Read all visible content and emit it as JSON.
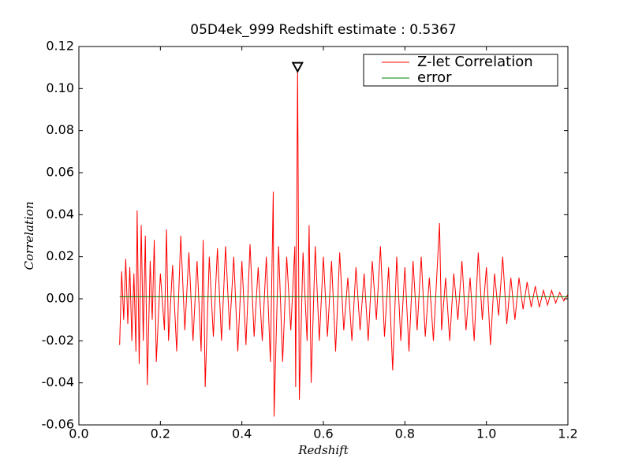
{
  "chart_data": {
    "type": "line",
    "title": "05D4ek_999 Redshift estimate : 0.5367",
    "x_label": "Redshift",
    "y_label": "Correlation",
    "xlim": [
      0,
      1.2
    ],
    "ylim": [
      -0.06,
      0.12
    ],
    "xticks": [
      {
        "value": 0,
        "label": "0.0"
      },
      0.2,
      0.4,
      0.6,
      0.8,
      {
        "value": 1,
        "label": "1.0"
      },
      1.2
    ],
    "yticks": [
      -0.06,
      -0.04,
      -0.02,
      {
        "value": 0,
        "label": "0.00"
      },
      0.02,
      0.04,
      0.06,
      0.08,
      {
        "value": 0.1,
        "label": "0.10"
      },
      0.12
    ],
    "grid": false,
    "legend": "upper right",
    "peak": {
      "x": 0.5367,
      "y": 0.11
    },
    "series": [
      {
        "name": "Z-let Correlation",
        "color": "#ff0000",
        "x": [
          0.1,
          0.105,
          0.11,
          0.115,
          0.12,
          0.125,
          0.13,
          0.135,
          0.14,
          0.143,
          0.148,
          0.153,
          0.158,
          0.163,
          0.168,
          0.175,
          0.18,
          0.185,
          0.19,
          0.2,
          0.21,
          0.215,
          0.22,
          0.23,
          0.24,
          0.25,
          0.26,
          0.27,
          0.28,
          0.29,
          0.3,
          0.305,
          0.31,
          0.32,
          0.33,
          0.34,
          0.35,
          0.36,
          0.37,
          0.38,
          0.39,
          0.4,
          0.41,
          0.42,
          0.43,
          0.44,
          0.45,
          0.46,
          0.47,
          0.477,
          0.479,
          0.49,
          0.5,
          0.51,
          0.52,
          0.53,
          0.532,
          0.5367,
          0.541,
          0.55,
          0.56,
          0.565,
          0.57,
          0.58,
          0.59,
          0.6,
          0.61,
          0.62,
          0.63,
          0.64,
          0.65,
          0.66,
          0.67,
          0.68,
          0.69,
          0.7,
          0.71,
          0.72,
          0.73,
          0.74,
          0.75,
          0.76,
          0.77,
          0.78,
          0.79,
          0.8,
          0.81,
          0.82,
          0.83,
          0.84,
          0.85,
          0.86,
          0.87,
          0.885,
          0.89,
          0.9,
          0.91,
          0.92,
          0.93,
          0.94,
          0.95,
          0.96,
          0.97,
          0.98,
          0.99,
          1.0,
          1.01,
          1.02,
          1.03,
          1.04,
          1.05,
          1.06,
          1.07,
          1.08,
          1.09,
          1.1,
          1.11,
          1.12,
          1.13,
          1.14,
          1.15,
          1.16,
          1.17,
          1.18,
          1.19,
          1.2
        ],
        "values": [
          -0.022,
          0.013,
          -0.01,
          0.019,
          -0.012,
          0.015,
          -0.02,
          0.012,
          -0.025,
          0.042,
          -0.031,
          0.035,
          -0.02,
          0.03,
          -0.041,
          0.018,
          -0.01,
          0.028,
          -0.03,
          0.012,
          -0.015,
          0.033,
          -0.02,
          0.016,
          -0.025,
          0.03,
          -0.015,
          0.022,
          -0.02,
          0.018,
          -0.025,
          0.028,
          -0.042,
          0.02,
          -0.018,
          0.024,
          -0.02,
          0.025,
          -0.015,
          0.02,
          -0.025,
          0.018,
          -0.022,
          0.026,
          -0.018,
          0.015,
          -0.02,
          0.02,
          -0.03,
          0.051,
          -0.056,
          0.025,
          -0.03,
          0.02,
          -0.015,
          0.025,
          -0.042,
          0.11,
          -0.048,
          0.022,
          -0.02,
          0.035,
          -0.04,
          0.025,
          -0.02,
          0.02,
          -0.018,
          0.018,
          -0.025,
          0.022,
          -0.015,
          0.01,
          -0.02,
          0.015,
          -0.015,
          0.012,
          -0.02,
          0.018,
          -0.01,
          0.025,
          -0.018,
          0.015,
          -0.034,
          0.02,
          -0.02,
          0.015,
          -0.025,
          0.018,
          -0.015,
          0.02,
          -0.018,
          0.01,
          -0.02,
          0.036,
          -0.015,
          0.01,
          -0.02,
          0.012,
          -0.01,
          0.018,
          -0.015,
          0.01,
          -0.02,
          0.022,
          -0.01,
          0.015,
          -0.022,
          0.012,
          -0.008,
          0.02,
          -0.012,
          0.01,
          -0.01,
          0.01,
          -0.005,
          0.008,
          -0.004,
          0.006,
          -0.004,
          0.004,
          -0.003,
          0.004,
          -0.002,
          0.003,
          -0.001,
          0.002
        ]
      },
      {
        "name": "error",
        "color": "#008000",
        "x": [
          0.1,
          1.2
        ],
        "values": [
          0.001,
          0.001
        ]
      }
    ]
  }
}
